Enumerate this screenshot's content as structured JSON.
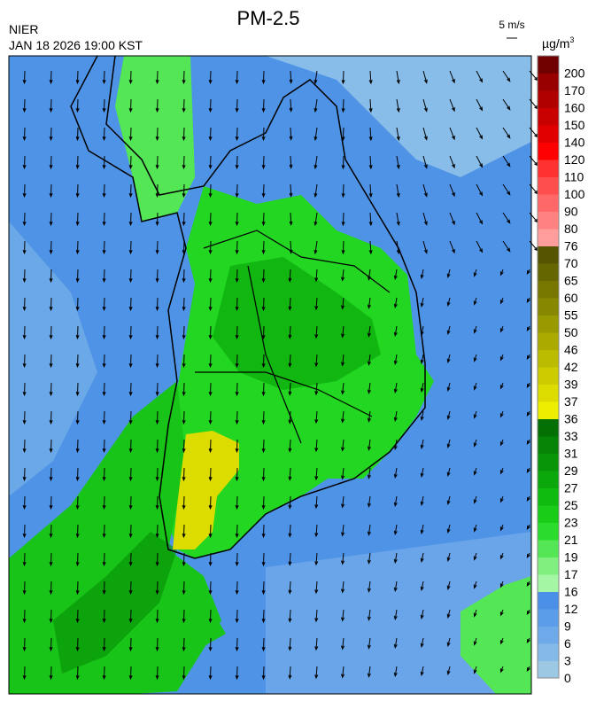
{
  "header": {
    "title": "PM-2.5",
    "agency": "NIER",
    "datetime": "JAN 18 2026 19:00 KST",
    "wind_scale": "5 m/s",
    "unit": "µg/m",
    "unit_sup": "3"
  },
  "legend": {
    "labels": [
      "0",
      "3",
      "6",
      "9",
      "12",
      "16",
      "17",
      "19",
      "21",
      "23",
      "25",
      "27",
      "29",
      "31",
      "33",
      "36",
      "37",
      "39",
      "42",
      "46",
      "50",
      "55",
      "60",
      "65",
      "70",
      "76",
      "80",
      "90",
      "100",
      "110",
      "120",
      "140",
      "150",
      "160",
      "170",
      "200"
    ],
    "colors": [
      "#9cc8e4",
      "#84b9e8",
      "#6eaaea",
      "#5c9de9",
      "#4a90e8",
      "#a4f5a4",
      "#80ef80",
      "#55e655",
      "#2cdc2c",
      "#18cc18",
      "#10bb10",
      "#0ba80b",
      "#089608",
      "#068406",
      "#047004",
      "#eeee00",
      "#dcdc00",
      "#cccc00",
      "#bbbb00",
      "#aaaa00",
      "#999900",
      "#888800",
      "#777700",
      "#666600",
      "#555500",
      "#ff9c9c",
      "#ff8282",
      "#ff6868",
      "#ff4e4e",
      "#ff3232",
      "#ff0000",
      "#e00000",
      "#c80000",
      "#b00000",
      "#980000",
      "#700000"
    ]
  }
}
